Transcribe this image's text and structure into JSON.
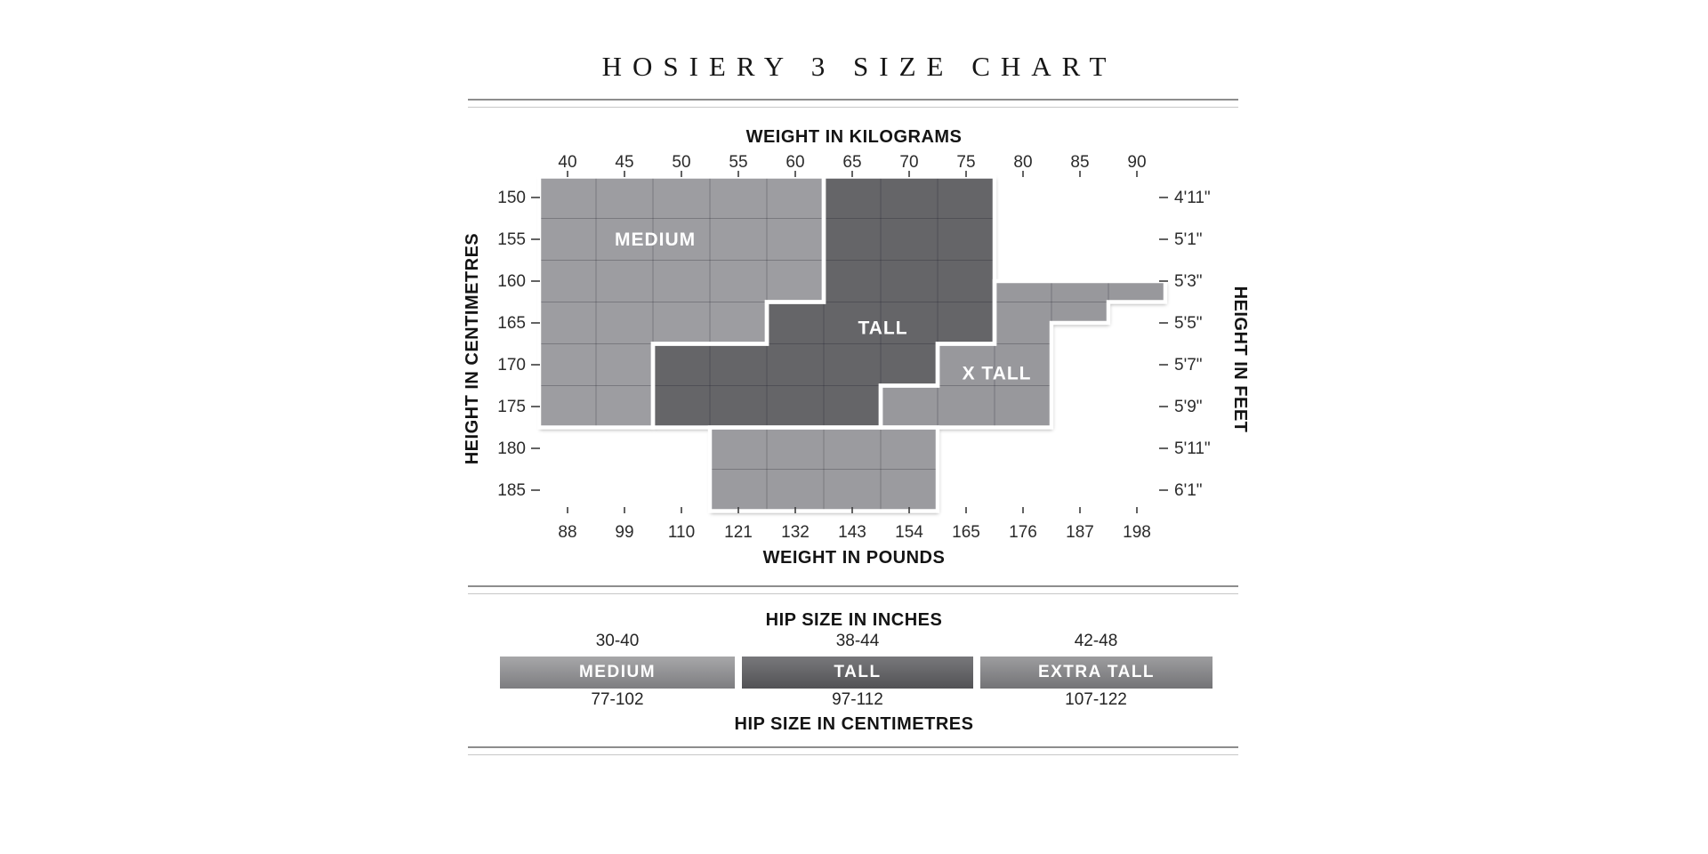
{
  "title": "HOSIERY 3 SIZE CHART",
  "chart_data": {
    "type": "area",
    "description": "Size-zone map: weight (kg top axis / pounds bottom axis) vs height (cm left axis / feet-inches right axis); stepped regions MEDIUM, TALL, X TALL",
    "top_axis": {
      "label": "WEIGHT IN KILOGRAMS",
      "ticks": [
        40,
        45,
        50,
        55,
        60,
        65,
        70,
        75,
        80,
        85,
        90
      ]
    },
    "bottom_axis": {
      "label": "WEIGHT IN POUNDS",
      "ticks": [
        88,
        99,
        110,
        121,
        132,
        143,
        154,
        165,
        176,
        187,
        198
      ]
    },
    "left_axis": {
      "label": "HEIGHT IN CENTIMETRES",
      "ticks": [
        150,
        155,
        160,
        165,
        170,
        175,
        180,
        185
      ]
    },
    "right_axis": {
      "label": "HEIGHT IN FEET",
      "ticks": [
        "4'11\"",
        "5'1\"",
        "5'3\"",
        "5'5\"",
        "5'7\"",
        "5'9\"",
        "5'11\"",
        "6'1\""
      ]
    },
    "x_range_kg": [
      37.5,
      92.5
    ],
    "y_range_cm": [
      147.5,
      187.5
    ],
    "grid": {
      "on": true,
      "v_kg": [
        42.5,
        47.5,
        52.5,
        57.5,
        62.5,
        67.5,
        72.5,
        77.5,
        82.5,
        87.5
      ],
      "h_cm": [
        152.5,
        157.5,
        162.5,
        167.5,
        172.5,
        177.5,
        182.5
      ]
    },
    "regions": [
      {
        "id": "medium",
        "name": "MEDIUM",
        "color": "#9d9da1",
        "label_anchor": [
          47.7,
          155.0
        ],
        "polygon": [
          [
            37.5,
            147.5
          ],
          [
            62.5,
            147.5
          ],
          [
            62.5,
            162.5
          ],
          [
            57.5,
            162.5
          ],
          [
            57.5,
            167.5
          ],
          [
            47.5,
            167.5
          ],
          [
            47.5,
            177.5
          ],
          [
            37.5,
            177.5
          ]
        ]
      },
      {
        "id": "tall",
        "name": "TALL",
        "color": "#656568",
        "label_anchor": [
          67.7,
          165.6
        ],
        "polygon": [
          [
            62.5,
            147.5
          ],
          [
            77.5,
            147.5
          ],
          [
            77.5,
            167.5
          ],
          [
            72.5,
            167.5
          ],
          [
            72.5,
            172.5
          ],
          [
            67.5,
            172.5
          ],
          [
            67.5,
            177.5
          ],
          [
            47.5,
            177.5
          ],
          [
            47.5,
            167.5
          ],
          [
            57.5,
            167.5
          ],
          [
            57.5,
            162.5
          ],
          [
            62.5,
            162.5
          ]
        ]
      },
      {
        "id": "x-tall",
        "name": "X TALL",
        "color": "#98989c",
        "label_anchor": [
          77.7,
          171.0
        ],
        "polygon": [
          [
            77.5,
            160
          ],
          [
            92.5,
            160
          ],
          [
            92.5,
            162.5
          ],
          [
            87.5,
            162.5
          ],
          [
            87.5,
            165
          ],
          [
            82.5,
            165
          ],
          [
            82.5,
            177.5
          ],
          [
            67.5,
            177.5
          ],
          [
            67.5,
            172.5
          ],
          [
            72.5,
            172.5
          ],
          [
            72.5,
            167.5
          ],
          [
            77.5,
            167.5
          ]
        ]
      },
      {
        "id": "medium-lower-extension",
        "name": "",
        "color": "#9b9b9f",
        "label_anchor": null,
        "polygon": [
          [
            52.5,
            177.5
          ],
          [
            72.5,
            177.5
          ],
          [
            72.5,
            187.5
          ],
          [
            52.5,
            187.5
          ]
        ]
      }
    ],
    "colors": {
      "grid_line": "rgba(30,30,40,0.28)",
      "region_divider": "#ffffff",
      "tick_text": "#2b2b2b",
      "axis_title": "#141414"
    }
  },
  "hip_section": {
    "inches_title": "HIP SIZE IN INCHES",
    "cm_title": "HIP SIZE IN CENTIMETRES",
    "sizes": [
      {
        "name": "MEDIUM",
        "inches": "30-40",
        "cm": "77-102",
        "bar_gradient": [
          "#a7a7a9",
          "#7d7d80"
        ]
      },
      {
        "name": "TALL",
        "inches": "38-44",
        "cm": "97-112",
        "bar_gradient": [
          "#78787b",
          "#525255"
        ]
      },
      {
        "name": "EXTRA TALL",
        "inches": "42-48",
        "cm": "107-122",
        "bar_gradient": [
          "#9d9d9f",
          "#737376"
        ]
      }
    ]
  }
}
